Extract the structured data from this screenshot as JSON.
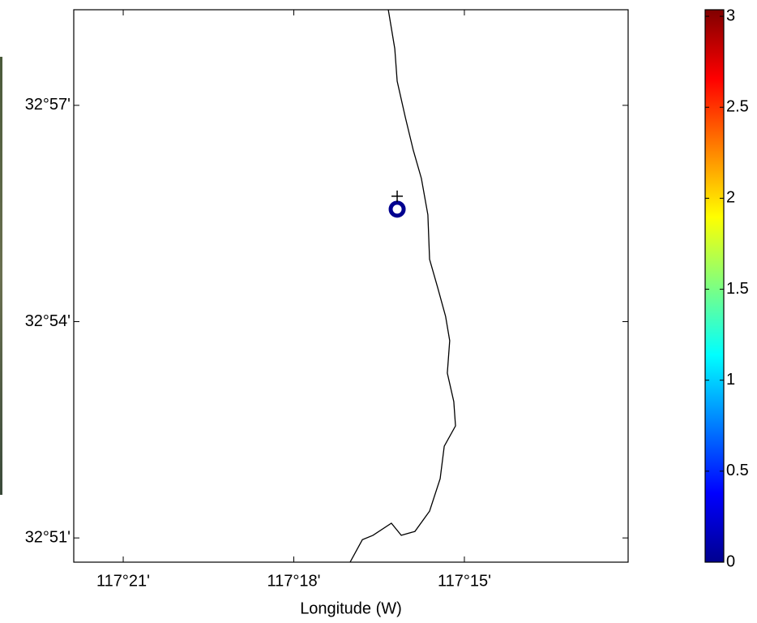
{
  "chart_data": {
    "type": "map",
    "xlabel": "Longitude (W)",
    "xlim": [
      -117.3645,
      -117.202
    ],
    "ylim": [
      32.8444,
      32.9721
    ],
    "xticks": [
      {
        "value": -117.35,
        "label": "117°21'"
      },
      {
        "value": -117.3,
        "label": "117°18'"
      },
      {
        "value": -117.25,
        "label": "117°15'"
      }
    ],
    "yticks": [
      {
        "value": 32.85,
        "label": "32°51'"
      },
      {
        "value": 32.9,
        "label": "32°54'"
      },
      {
        "value": 32.95,
        "label": "32°57'"
      }
    ],
    "lines": [
      {
        "color": "#000000",
        "x": [
          -117.2723,
          -117.2704,
          -117.2697,
          -117.2673,
          -117.265,
          -117.2626,
          -117.2607,
          -117.2602,
          -117.2578,
          -117.2555,
          -117.2543,
          -117.255,
          -117.2531,
          -117.2526,
          -117.2559,
          -117.2571,
          -117.2602,
          -117.2645,
          -117.2685,
          -117.2714,
          -117.2768,
          -117.2799,
          -117.2835
        ],
        "y": [
          32.9721,
          32.9631,
          32.9556,
          32.9472,
          32.9397,
          32.9331,
          32.9247,
          32.9144,
          32.9078,
          32.9012,
          32.8956,
          32.8881,
          32.8815,
          32.8759,
          32.8712,
          32.8637,
          32.8562,
          32.8515,
          32.8506,
          32.8534,
          32.8506,
          32.8496,
          32.8444
        ]
      }
    ],
    "points": [
      {
        "marker": "o",
        "color": "#00008f",
        "x": -117.2697,
        "y": 32.926
      },
      {
        "marker": "+",
        "color": "#000000",
        "x": -117.2697,
        "y": 32.929
      }
    ],
    "colorbar": {
      "colormap": "jet",
      "clim": [
        0,
        3.036
      ],
      "ticks": [
        0,
        0.5,
        1,
        1.5,
        2,
        2.5,
        3
      ]
    }
  }
}
